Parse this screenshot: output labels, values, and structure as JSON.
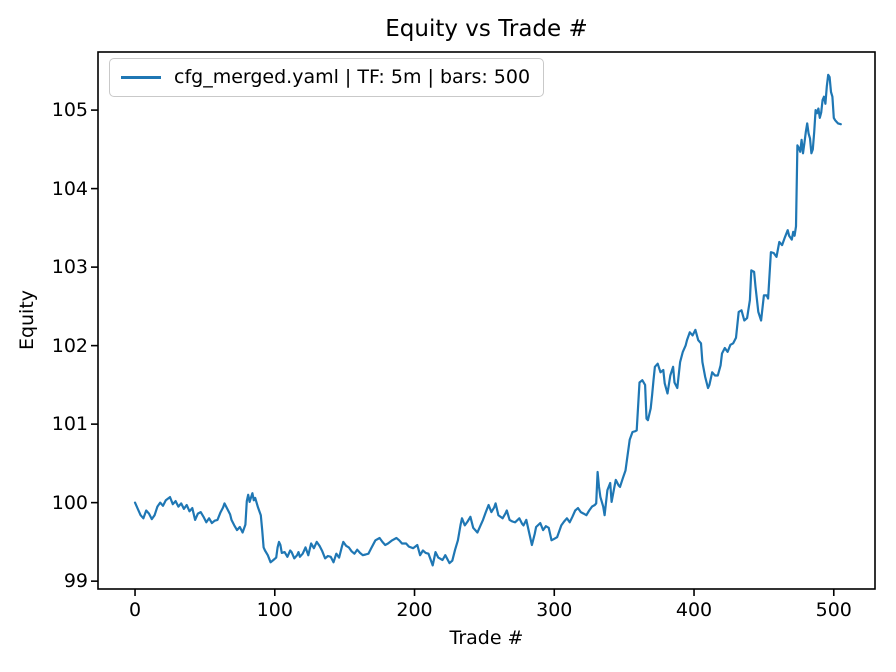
{
  "chart_data": {
    "type": "line",
    "title": "Equity vs Trade #",
    "xlabel": "Trade #",
    "ylabel": "Equity",
    "grid": false,
    "legend": {
      "position": "upper left",
      "entries": [
        {
          "label": "cfg_merged.yaml | TF: 5m | bars: 500",
          "color": "#1f77b4"
        }
      ]
    },
    "x_ticks": [
      0,
      100,
      200,
      300,
      400,
      500
    ],
    "y_ticks": [
      99,
      100,
      101,
      102,
      103,
      104,
      105
    ],
    "xlim": [
      -26.5,
      529.5
    ],
    "ylim": [
      98.9,
      105.74
    ],
    "axes_color": "#000000",
    "series": [
      {
        "name": "cfg_merged.yaml | TF: 5m | bars: 500",
        "color": "#1f77b4",
        "points": [
          [
            0,
            100
          ],
          [
            2,
            99.92
          ],
          [
            4,
            99.84
          ],
          [
            6,
            99.8
          ],
          [
            8,
            99.9
          ],
          [
            10,
            99.86
          ],
          [
            12,
            99.79
          ],
          [
            14,
            99.84
          ],
          [
            16,
            99.95
          ],
          [
            18,
            100
          ],
          [
            20,
            99.96
          ],
          [
            22,
            100.03
          ],
          [
            25,
            100.07
          ],
          [
            27,
            99.98
          ],
          [
            29,
            100.02
          ],
          [
            31,
            99.95
          ],
          [
            33,
            99.99
          ],
          [
            35,
            99.92
          ],
          [
            37,
            99.97
          ],
          [
            39,
            99.89
          ],
          [
            41,
            99.93
          ],
          [
            43,
            99.78
          ],
          [
            45,
            99.86
          ],
          [
            47,
            99.88
          ],
          [
            49,
            99.82
          ],
          [
            51,
            99.75
          ],
          [
            53,
            99.8
          ],
          [
            55,
            99.74
          ],
          [
            57,
            99.77
          ],
          [
            59,
            99.78
          ],
          [
            61,
            99.87
          ],
          [
            63,
            99.94
          ],
          [
            64,
            99.99
          ],
          [
            66,
            99.92
          ],
          [
            68,
            99.85
          ],
          [
            69,
            99.78
          ],
          [
            71,
            99.71
          ],
          [
            73,
            99.65
          ],
          [
            75,
            99.69
          ],
          [
            77,
            99.62
          ],
          [
            79,
            99.72
          ],
          [
            80,
            100.02
          ],
          [
            81,
            100.1
          ],
          [
            82,
            100.01
          ],
          [
            84,
            100.12
          ],
          [
            85,
            100.03
          ],
          [
            86,
            100.06
          ],
          [
            88,
            99.94
          ],
          [
            90,
            99.84
          ],
          [
            91,
            99.65
          ],
          [
            92,
            99.43
          ],
          [
            93,
            99.39
          ],
          [
            95,
            99.33
          ],
          [
            97,
            99.24
          ],
          [
            99,
            99.27
          ],
          [
            101,
            99.3
          ],
          [
            102,
            99.43
          ],
          [
            103,
            99.5
          ],
          [
            104,
            99.46
          ],
          [
            105,
            99.36
          ],
          [
            107,
            99.37
          ],
          [
            109,
            99.31
          ],
          [
            111,
            99.39
          ],
          [
            112,
            99.37
          ],
          [
            114,
            99.29
          ],
          [
            116,
            99.33
          ],
          [
            117,
            99.37
          ],
          [
            118,
            99.31
          ],
          [
            120,
            99.35
          ],
          [
            122,
            99.43
          ],
          [
            124,
            99.33
          ],
          [
            126,
            99.48
          ],
          [
            128,
            99.42
          ],
          [
            130,
            99.5
          ],
          [
            132,
            99.45
          ],
          [
            134,
            99.38
          ],
          [
            136,
            99.29
          ],
          [
            138,
            99.32
          ],
          [
            140,
            99.31
          ],
          [
            142,
            99.24
          ],
          [
            144,
            99.35
          ],
          [
            146,
            99.3
          ],
          [
            148,
            99.44
          ],
          [
            149,
            99.5
          ],
          [
            151,
            99.45
          ],
          [
            153,
            99.43
          ],
          [
            155,
            99.38
          ],
          [
            157,
            99.35
          ],
          [
            159,
            99.4
          ],
          [
            161,
            99.36
          ],
          [
            163,
            99.33
          ],
          [
            165,
            99.34
          ],
          [
            167,
            99.35
          ],
          [
            169,
            99.42
          ],
          [
            172,
            99.52
          ],
          [
            175,
            99.55
          ],
          [
            177,
            99.5
          ],
          [
            179,
            99.46
          ],
          [
            181,
            99.48
          ],
          [
            184,
            99.52
          ],
          [
            187,
            99.55
          ],
          [
            189,
            99.52
          ],
          [
            191,
            99.48
          ],
          [
            194,
            99.48
          ],
          [
            196,
            99.44
          ],
          [
            199,
            99.42
          ],
          [
            202,
            99.46
          ],
          [
            204,
            99.33
          ],
          [
            206,
            99.39
          ],
          [
            208,
            99.36
          ],
          [
            210,
            99.35
          ],
          [
            213,
            99.2
          ],
          [
            215,
            99.37
          ],
          [
            217,
            99.3
          ],
          [
            220,
            99.27
          ],
          [
            222,
            99.33
          ],
          [
            225,
            99.23
          ],
          [
            227,
            99.26
          ],
          [
            229,
            99.4
          ],
          [
            231,
            99.52
          ],
          [
            233,
            99.72
          ],
          [
            234,
            99.8
          ],
          [
            236,
            99.71
          ],
          [
            238,
            99.76
          ],
          [
            240,
            99.82
          ],
          [
            242,
            99.68
          ],
          [
            245,
            99.62
          ],
          [
            247,
            99.7
          ],
          [
            249,
            99.78
          ],
          [
            251,
            99.88
          ],
          [
            253,
            99.97
          ],
          [
            255,
            99.88
          ],
          [
            257,
            99.94
          ],
          [
            258,
            99.99
          ],
          [
            260,
            99.84
          ],
          [
            263,
            99.8
          ],
          [
            265,
            99.86
          ],
          [
            266,
            99.9
          ],
          [
            268,
            99.78
          ],
          [
            270,
            99.76
          ],
          [
            272,
            99.75
          ],
          [
            275,
            99.8
          ],
          [
            277,
            99.73
          ],
          [
            278,
            99.71
          ],
          [
            280,
            99.78
          ],
          [
            282,
            99.62
          ],
          [
            284,
            99.46
          ],
          [
            286,
            99.6
          ],
          [
            287,
            99.69
          ],
          [
            290,
            99.74
          ],
          [
            292,
            99.65
          ],
          [
            294,
            99.7
          ],
          [
            296,
            99.68
          ],
          [
            298,
            99.52
          ],
          [
            300,
            99.54
          ],
          [
            302,
            99.56
          ],
          [
            305,
            99.71
          ],
          [
            307,
            99.76
          ],
          [
            309,
            99.8
          ],
          [
            311,
            99.75
          ],
          [
            313,
            99.82
          ],
          [
            315,
            99.9
          ],
          [
            317,
            99.93
          ],
          [
            319,
            99.88
          ],
          [
            321,
            99.86
          ],
          [
            323,
            99.84
          ],
          [
            325,
            99.9
          ],
          [
            327,
            99.95
          ],
          [
            329,
            99.97
          ],
          [
            330,
            99.99
          ],
          [
            331,
            100.39
          ],
          [
            332,
            100.2
          ],
          [
            333,
            100.07
          ],
          [
            335,
            99.95
          ],
          [
            336,
            99.84
          ],
          [
            338,
            100.16
          ],
          [
            340,
            100.25
          ],
          [
            341,
            100.01
          ],
          [
            343,
            100.2
          ],
          [
            344,
            100.29
          ],
          [
            346,
            100.22
          ],
          [
            347,
            100.2
          ],
          [
            349,
            100.31
          ],
          [
            351,
            100.41
          ],
          [
            352,
            100.54
          ],
          [
            354,
            100.8
          ],
          [
            356,
            100.9
          ],
          [
            358,
            100.91
          ],
          [
            359,
            100.92
          ],
          [
            361,
            101.53
          ],
          [
            363,
            101.56
          ],
          [
            365,
            101.5
          ],
          [
            366,
            101.07
          ],
          [
            367,
            101.05
          ],
          [
            369,
            101.2
          ],
          [
            370,
            101.37
          ],
          [
            371,
            101.56
          ],
          [
            372,
            101.73
          ],
          [
            374,
            101.77
          ],
          [
            376,
            101.66
          ],
          [
            378,
            101.69
          ],
          [
            379,
            101.52
          ],
          [
            381,
            101.39
          ],
          [
            383,
            101.62
          ],
          [
            385,
            101.73
          ],
          [
            386,
            101.53
          ],
          [
            388,
            101.46
          ],
          [
            390,
            101.79
          ],
          [
            392,
            101.92
          ],
          [
            394,
            102
          ],
          [
            395,
            102.07
          ],
          [
            397,
            102.17
          ],
          [
            399,
            102.13
          ],
          [
            401,
            102.2
          ],
          [
            403,
            102.07
          ],
          [
            405,
            102.03
          ],
          [
            406,
            101.79
          ],
          [
            408,
            101.6
          ],
          [
            410,
            101.46
          ],
          [
            411,
            101.5
          ],
          [
            413,
            101.66
          ],
          [
            415,
            101.62
          ],
          [
            417,
            101.62
          ],
          [
            419,
            101.75
          ],
          [
            420,
            101.9
          ],
          [
            422,
            101.97
          ],
          [
            424,
            101.92
          ],
          [
            426,
            102.01
          ],
          [
            428,
            102.03
          ],
          [
            430,
            102.1
          ],
          [
            432,
            102.43
          ],
          [
            434,
            102.45
          ],
          [
            436,
            102.32
          ],
          [
            438,
            102.35
          ],
          [
            440,
            102.58
          ],
          [
            441,
            102.96
          ],
          [
            443,
            102.94
          ],
          [
            444,
            102.75
          ],
          [
            446,
            102.43
          ],
          [
            448,
            102.32
          ],
          [
            450,
            102.64
          ],
          [
            452,
            102.64
          ],
          [
            453,
            102.6
          ],
          [
            455,
            103.19
          ],
          [
            457,
            103.18
          ],
          [
            459,
            103.13
          ],
          [
            461,
            103.32
          ],
          [
            463,
            103.28
          ],
          [
            465,
            103.38
          ],
          [
            467,
            103.47
          ],
          [
            468,
            103.4
          ],
          [
            470,
            103.35
          ],
          [
            471,
            103.45
          ],
          [
            472,
            103.4
          ],
          [
            473,
            103.52
          ],
          [
            474,
            104.55
          ],
          [
            475,
            104.52
          ],
          [
            476,
            104.47
          ],
          [
            477,
            104.62
          ],
          [
            478,
            104.45
          ],
          [
            479,
            104.58
          ],
          [
            480,
            104.72
          ],
          [
            481,
            104.83
          ],
          [
            482,
            104.7
          ],
          [
            483,
            104.64
          ],
          [
            484,
            104.45
          ],
          [
            485,
            104.5
          ],
          [
            486,
            104.72
          ],
          [
            487,
            105
          ],
          [
            488,
            104.96
          ],
          [
            489,
            105.02
          ],
          [
            490,
            104.9
          ],
          [
            491,
            104.97
          ],
          [
            492,
            105.13
          ],
          [
            493,
            105.17
          ],
          [
            494,
            105.08
          ],
          [
            495,
            105.3
          ],
          [
            496,
            105.45
          ],
          [
            497,
            105.42
          ],
          [
            498,
            105.23
          ],
          [
            499,
            105.17
          ],
          [
            500,
            104.9
          ],
          [
            501,
            104.87
          ],
          [
            502,
            104.85
          ],
          [
            503,
            104.83
          ],
          [
            505,
            104.82
          ]
        ]
      }
    ]
  }
}
